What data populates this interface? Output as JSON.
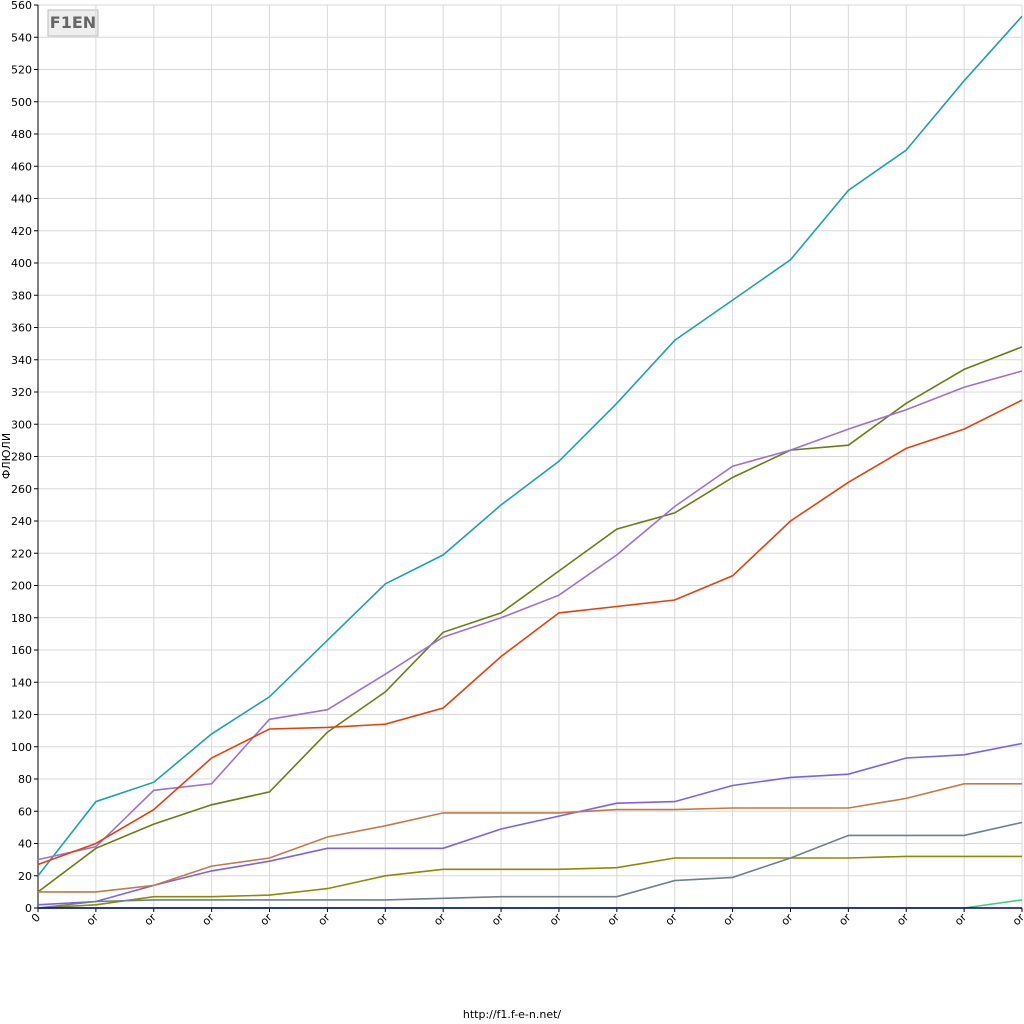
{
  "logo": "F1EN",
  "footer": "http://f1.f-e-n.net/",
  "chart_data": {
    "type": "line",
    "y_label": "ФЛЮЛИ",
    "categories": [
      "0",
      "or",
      "or",
      "or",
      "or",
      "or",
      "or",
      "or",
      "or",
      "or",
      "or",
      "or",
      "or",
      "or",
      "or",
      "or",
      "or",
      "or"
    ],
    "ylim": [
      0,
      560
    ],
    "yticks": [
      0,
      20,
      40,
      60,
      80,
      100,
      120,
      140,
      160,
      180,
      200,
      220,
      240,
      260,
      280,
      300,
      320,
      340,
      360,
      380,
      400,
      420,
      440,
      460,
      480,
      500,
      520,
      540,
      560
    ],
    "grid": true,
    "series": [
      {
        "color": "#1fa3a3",
        "values": [
          20,
          66,
          78,
          108,
          131,
          166,
          201,
          219,
          250,
          277,
          313,
          352,
          377,
          402,
          445,
          470,
          513,
          553
        ]
      },
      {
        "color": "#6b7d12",
        "values": [
          10,
          37,
          52,
          64,
          72,
          109,
          134,
          171,
          183,
          209,
          235,
          245,
          267,
          284,
          287,
          313,
          334,
          348
        ]
      },
      {
        "color": "#9a72d6",
        "values": [
          30,
          38,
          73,
          77,
          117,
          123,
          145,
          168,
          180,
          194,
          219,
          249,
          274,
          284,
          297,
          309,
          323,
          333
        ]
      },
      {
        "color": "#e2420e",
        "values": [
          27,
          40,
          61,
          93,
          111,
          112,
          114,
          124,
          156,
          183,
          187,
          191,
          206,
          240,
          264,
          285,
          297,
          315
        ]
      },
      {
        "color": "#7b62e8",
        "values": [
          2,
          4,
          14,
          23,
          29,
          37,
          37,
          37,
          49,
          57,
          65,
          66,
          76,
          81,
          83,
          93,
          95,
          102
        ]
      },
      {
        "color": "#c47a42",
        "values": [
          10,
          10,
          14,
          26,
          31,
          44,
          51,
          59,
          59,
          59,
          61,
          61,
          62,
          62,
          62,
          68,
          77,
          77
        ]
      },
      {
        "color": "#8c8c00",
        "values": [
          0,
          2,
          7,
          7,
          8,
          12,
          20,
          24,
          24,
          24,
          25,
          31,
          31,
          31,
          31,
          32,
          32,
          32
        ]
      },
      {
        "color": "#6f7f8f",
        "values": [
          0,
          4,
          5,
          5,
          5,
          5,
          5,
          6,
          7,
          7,
          7,
          17,
          19,
          31,
          45,
          45,
          45,
          53
        ]
      },
      {
        "color": "#3ccf84",
        "values": [
          0,
          0,
          0,
          0,
          0,
          0,
          0,
          0,
          0,
          0,
          0,
          0,
          0,
          0,
          0,
          0,
          0,
          5
        ]
      },
      {
        "color": "#00007a",
        "values": [
          0,
          0,
          0,
          0,
          0,
          0,
          0,
          0,
          0,
          0,
          0,
          0,
          0,
          0,
          0,
          0,
          0,
          0
        ]
      }
    ]
  }
}
